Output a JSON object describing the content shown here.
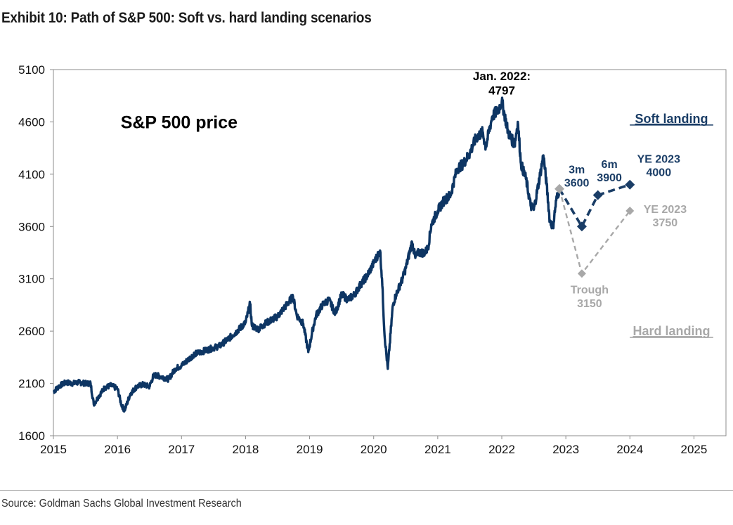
{
  "title": "Exhibit 10: Path of S&P 500: Soft vs. hard landing scenarios",
  "source": "Source: Goldman Sachs Global Investment Research",
  "colors": {
    "history": "#0d3563",
    "soft": "#1a3d66",
    "hard": "#a8a8a8",
    "now_marker": "#a8a8a8"
  },
  "chart_data": {
    "type": "line",
    "title": "",
    "xlabel": "",
    "ylabel": "",
    "xlim": [
      2015,
      2025.5
    ],
    "ylim": [
      1600,
      5100
    ],
    "x_ticks": [
      "2015",
      "2016",
      "2017",
      "2018",
      "2019",
      "2020",
      "2021",
      "2022",
      "2023",
      "2024",
      "2025"
    ],
    "y_ticks": [
      "1600",
      "2100",
      "2600",
      "3100",
      "3600",
      "4100",
      "4600",
      "5100"
    ],
    "grid": false,
    "series": [
      {
        "name": "S&P 500 price",
        "style": "solid",
        "x": [
          2015.0,
          2015.1,
          2015.2,
          2015.3,
          2015.4,
          2015.5,
          2015.58,
          2015.63,
          2015.7,
          2015.8,
          2015.9,
          2016.0,
          2016.06,
          2016.11,
          2016.2,
          2016.3,
          2016.4,
          2016.5,
          2016.56,
          2016.6,
          2016.7,
          2016.8,
          2016.9,
          2017.0,
          2017.2,
          2017.4,
          2017.6,
          2017.8,
          2018.0,
          2018.07,
          2018.1,
          2018.2,
          2018.3,
          2018.5,
          2018.6,
          2018.74,
          2018.8,
          2018.9,
          2018.98,
          2019.05,
          2019.1,
          2019.2,
          2019.3,
          2019.4,
          2019.5,
          2019.6,
          2019.7,
          2019.8,
          2019.9,
          2020.0,
          2020.1,
          2020.13,
          2020.17,
          2020.22,
          2020.3,
          2020.35,
          2020.45,
          2020.5,
          2020.6,
          2020.65,
          2020.7,
          2020.8,
          2020.85,
          2020.9,
          2021.0,
          2021.1,
          2021.2,
          2021.3,
          2021.4,
          2021.5,
          2021.6,
          2021.7,
          2021.75,
          2021.85,
          2021.95,
          2022.0,
          2022.1,
          2022.2,
          2022.25,
          2022.3,
          2022.38,
          2022.45,
          2022.5,
          2022.6,
          2022.65,
          2022.7,
          2022.75,
          2022.8,
          2022.85,
          2022.9
        ],
        "y": [
          2020,
          2080,
          2110,
          2100,
          2110,
          2100,
          2100,
          1900,
          1970,
          2060,
          2080,
          2050,
          1900,
          1840,
          2000,
          2070,
          2090,
          2070,
          2170,
          2180,
          2160,
          2140,
          2240,
          2270,
          2380,
          2420,
          2460,
          2560,
          2680,
          2860,
          2650,
          2620,
          2670,
          2740,
          2820,
          2930,
          2750,
          2670,
          2400,
          2620,
          2750,
          2850,
          2900,
          2770,
          2950,
          2900,
          2950,
          3050,
          3130,
          3250,
          3370,
          3100,
          2560,
          2240,
          2850,
          2950,
          3100,
          3200,
          3450,
          3300,
          3350,
          3350,
          3400,
          3620,
          3750,
          3850,
          3900,
          4150,
          4200,
          4300,
          4450,
          4500,
          4360,
          4650,
          4720,
          4797,
          4500,
          4380,
          4600,
          4200,
          4050,
          3800,
          3760,
          4100,
          4280,
          4000,
          3650,
          3600,
          3850,
          3960
        ]
      },
      {
        "name": "Soft landing",
        "style": "dashed",
        "x": [
          2022.9,
          2023.25,
          2023.5,
          2024.0
        ],
        "y": [
          3960,
          3600,
          3900,
          4000
        ]
      },
      {
        "name": "Hard landing",
        "style": "dashed",
        "x": [
          2022.9,
          2023.25,
          2024.0
        ],
        "y": [
          3960,
          3150,
          3750
        ]
      }
    ],
    "annotations": [
      {
        "lines": [
          "S&P 500 price"
        ],
        "x": 2016.05,
        "y": 4540,
        "series": "history",
        "size": 25
      },
      {
        "lines": [
          "Jan. 2022:",
          "4797"
        ],
        "x": 2022.0,
        "y": 5000,
        "series": "black",
        "size": 17
      },
      {
        "lines": [
          "Soft landing"
        ],
        "x": 2024.65,
        "y": 4590,
        "series": "soft",
        "size": 18,
        "underline": true
      },
      {
        "lines": [
          "3m",
          "3600"
        ],
        "x": 2023.17,
        "y": 4110,
        "series": "soft",
        "size": 16
      },
      {
        "lines": [
          "6m",
          "3900"
        ],
        "x": 2023.68,
        "y": 4160,
        "series": "soft",
        "size": 16
      },
      {
        "lines": [
          "YE 2023",
          "4000"
        ],
        "x": 2024.45,
        "y": 4210,
        "series": "soft",
        "size": 16
      },
      {
        "lines": [
          "YE 2023",
          "3750"
        ],
        "x": 2024.55,
        "y": 3730,
        "series": "hard",
        "size": 16
      },
      {
        "lines": [
          "Trough",
          "3150"
        ],
        "x": 2023.37,
        "y": 2960,
        "series": "hard",
        "size": 16
      },
      {
        "lines": [
          "Hard landing"
        ],
        "x": 2024.65,
        "y": 2560,
        "series": "hard",
        "size": 18,
        "underline": true
      }
    ]
  }
}
